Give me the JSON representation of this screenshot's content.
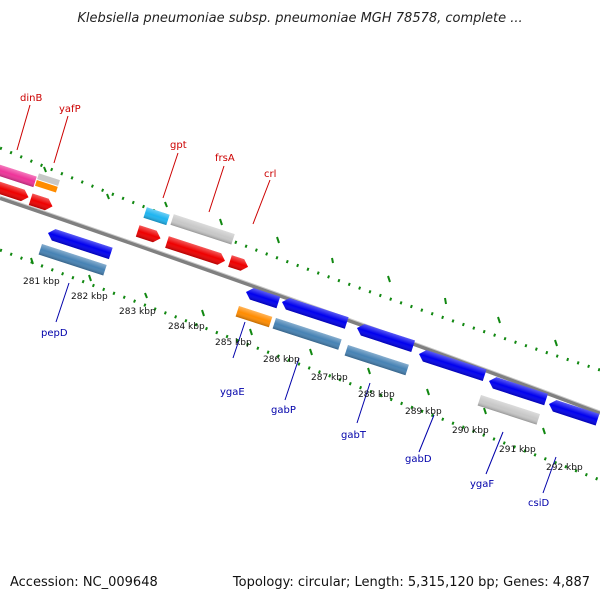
{
  "title": "Klebsiella pneumoniae subsp. pneumoniae MGH 78578, complete ...",
  "footer": {
    "accession": "Accession: NC_009648",
    "summary": "Topology: circular; Length: 5,315,120 bp; Genes: 4,887"
  },
  "ticks": [
    "281 kbp",
    "282 kbp",
    "283 kbp",
    "284 kbp",
    "285 kbp",
    "286 kbp",
    "287 kbp",
    "288 kbp",
    "289 kbp",
    "290 kbp",
    "291 kbp",
    "292 kbp"
  ],
  "genes_forward": [
    "dinB",
    "yafP",
    "gpt",
    "frsA",
    "crl"
  ],
  "genes_reverse": [
    "pepD",
    "ygaE",
    "gabP",
    "gabT",
    "gabD",
    "ygaF",
    "csiD"
  ],
  "colors": {
    "backbone": "#808080",
    "tick_green": "#118811",
    "label_red": "#cc0000",
    "label_blue": "#0000aa",
    "red": "#ee0000",
    "blue": "#0000ee",
    "steel": "#4682b4",
    "gray": "#c8c8c8",
    "orange": "#ff8c00",
    "cyan": "#1eb4f0",
    "pink": "#ee3399"
  }
}
